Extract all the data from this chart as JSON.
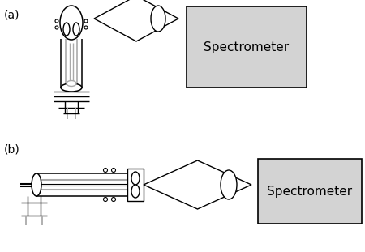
{
  "bg_color": "#ffffff",
  "gray_box_color": "#d3d3d3",
  "line_color": "#000000",
  "gray_line_color": "#aaaaaa",
  "label_a": "(a)",
  "label_b": "(b)",
  "spectrometer_text": "Spectrometer",
  "fig_width": 4.5,
  "fig_height": 3.11,
  "dpi": 100
}
